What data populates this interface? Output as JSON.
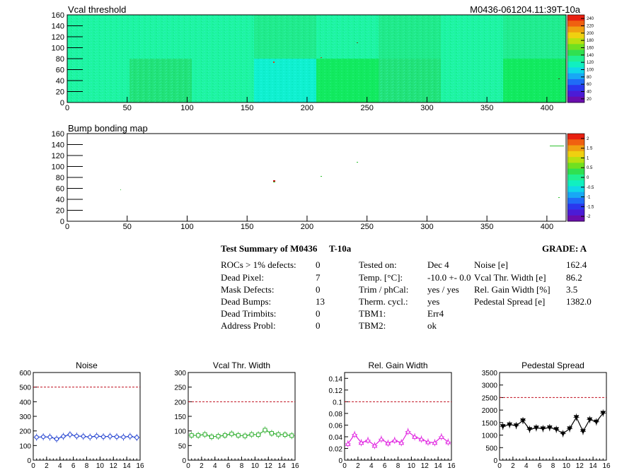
{
  "header": {
    "module_id": "M0436-061204.11:39T-10a"
  },
  "maps": [
    {
      "name": "vcal-threshold",
      "title": "Vcal threshold",
      "x_ticks": [
        "0",
        "50",
        "100",
        "150",
        "200",
        "250",
        "300",
        "350",
        "400"
      ],
      "y_ticks": [
        "0",
        "20",
        "40",
        "60",
        "80",
        "100",
        "120",
        "140",
        "160"
      ],
      "palette_ticks": [
        "20",
        "40",
        "60",
        "80",
        "100",
        "120",
        "140",
        "160",
        "180",
        "200",
        "220",
        "240"
      ]
    },
    {
      "name": "bump-bonding",
      "title": "Bump bonding map",
      "x_ticks": [
        "0",
        "50",
        "100",
        "150",
        "200",
        "250",
        "300",
        "350",
        "400"
      ],
      "y_ticks": [
        "0",
        "20",
        "40",
        "60",
        "80",
        "100",
        "120",
        "140",
        "160"
      ],
      "palette_ticks": [
        "-2",
        "-1.5",
        "-1",
        "-0.5",
        "0",
        "0.5",
        "1",
        "1.5",
        "2"
      ]
    }
  ],
  "summary": {
    "title": "Test Summary of M0436",
    "temp_tag": "T-10a",
    "grade_label": "GRADE:  A",
    "col1": [
      {
        "label": "ROCs > 1% defects:",
        "value": "0"
      },
      {
        "label": "Dead Pixel:",
        "value": "7"
      },
      {
        "label": "Mask Defects:",
        "value": "0"
      },
      {
        "label": "Dead Bumps:",
        "value": "13"
      },
      {
        "label": "Dead Trimbits:",
        "value": "0"
      },
      {
        "label": "Address Probl:",
        "value": "0"
      }
    ],
    "col2": [
      {
        "label": "Tested on:",
        "value": "Dec 4"
      },
      {
        "label": "Temp. [°C]:",
        "value": "-10.0 +- 0.0"
      },
      {
        "label": "Trim / phCal:",
        "value": "yes / yes"
      },
      {
        "label": "Therm. cycl.:",
        "value": "yes"
      },
      {
        "label": "TBM1:",
        "value": "Err4"
      },
      {
        "label": "TBM2:",
        "value": "ok"
      }
    ],
    "col3": [
      {
        "label": "Noise [e]",
        "value": "162.4"
      },
      {
        "label": "Vcal Thr. Width [e]",
        "value": "86.2"
      },
      {
        "label": "Rel. Gain Width [%]",
        "value": "3.5"
      },
      {
        "label": "Pedestal Spread [e]",
        "value": "1382.0"
      }
    ]
  },
  "chart_data": [
    {
      "type": "line",
      "title": "Noise",
      "x": [
        0,
        1,
        2,
        3,
        4,
        5,
        6,
        7,
        8,
        9,
        10,
        11,
        12,
        13,
        14,
        15
      ],
      "y": [
        157,
        160,
        158,
        145,
        163,
        175,
        165,
        163,
        158,
        165,
        160,
        163,
        160,
        158,
        163,
        155
      ],
      "xlim": [
        0,
        16
      ],
      "ylim": [
        0,
        600
      ],
      "x_ticks": [
        "0",
        "2",
        "4",
        "6",
        "8",
        "10",
        "12",
        "14",
        "16"
      ],
      "y_ticks": [
        "0",
        "100",
        "200",
        "300",
        "400",
        "500",
        "600"
      ],
      "threshold": 500,
      "marker": "circle",
      "color": "#1f3fd0"
    },
    {
      "type": "line",
      "title": "Vcal Thr. Width",
      "x": [
        0,
        1,
        2,
        3,
        4,
        5,
        6,
        7,
        8,
        9,
        10,
        11,
        12,
        13,
        14,
        15
      ],
      "y": [
        85,
        85,
        88,
        80,
        82,
        85,
        90,
        85,
        83,
        88,
        87,
        103,
        92,
        88,
        87,
        84
      ],
      "xlim": [
        0,
        16
      ],
      "ylim": [
        0,
        300
      ],
      "x_ticks": [
        "0",
        "2",
        "4",
        "6",
        "8",
        "10",
        "12",
        "14",
        "16"
      ],
      "y_ticks": [
        "0",
        "50",
        "100",
        "150",
        "200",
        "250",
        "300"
      ],
      "threshold": 200,
      "marker": "square",
      "color": "#38b238"
    },
    {
      "type": "line",
      "title": "Rel. Gain Width",
      "x": [
        0,
        1,
        2,
        3,
        4,
        5,
        6,
        7,
        8,
        9,
        10,
        11,
        12,
        13,
        14,
        15
      ],
      "y": [
        0.028,
        0.044,
        0.03,
        0.034,
        0.025,
        0.036,
        0.029,
        0.034,
        0.03,
        0.049,
        0.04,
        0.036,
        0.031,
        0.03,
        0.04,
        0.031
      ],
      "xlim": [
        0,
        16
      ],
      "ylim": [
        0,
        0.15
      ],
      "x_ticks": [
        "0",
        "2",
        "4",
        "6",
        "8",
        "10",
        "12",
        "14",
        "16"
      ],
      "y_ticks": [
        "0",
        "0.02",
        "0.04",
        "0.06",
        "0.08",
        "0.1",
        "0.12",
        "0.14"
      ],
      "threshold": 0.1,
      "marker": "triangle",
      "color": "#e020e0"
    },
    {
      "type": "line",
      "title": "Pedestal Spread",
      "x": [
        0,
        1,
        2,
        3,
        4,
        5,
        6,
        7,
        8,
        9,
        10,
        11,
        12,
        13,
        14,
        15
      ],
      "y": [
        1350,
        1420,
        1380,
        1580,
        1230,
        1290,
        1260,
        1300,
        1230,
        1060,
        1260,
        1710,
        1150,
        1620,
        1530,
        1880
      ],
      "xlim": [
        0,
        16
      ],
      "ylim": [
        0,
        3500
      ],
      "x_ticks": [
        "0",
        "2",
        "4",
        "6",
        "8",
        "10",
        "12",
        "14",
        "16"
      ],
      "y_ticks": [
        "0",
        "500",
        "1000",
        "1500",
        "2000",
        "2500",
        "3000",
        "3500"
      ],
      "threshold": 2500,
      "marker": "triangle-down",
      "color": "#000000"
    }
  ]
}
